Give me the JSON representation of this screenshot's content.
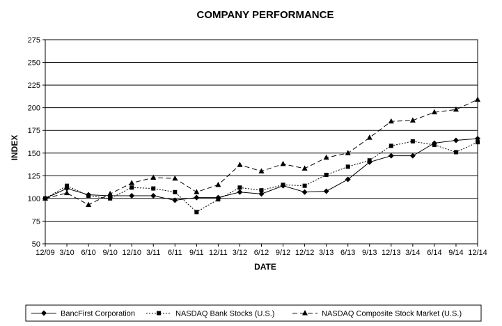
{
  "chart_data": {
    "type": "line",
    "title": "COMPANY PERFORMANCE",
    "xlabel": "DATE",
    "ylabel": "INDEX",
    "ylim": [
      50,
      275
    ],
    "yticks": [
      50,
      75,
      100,
      125,
      150,
      175,
      200,
      225,
      250,
      275
    ],
    "grid": "horizontal",
    "legend_position": "bottom",
    "categories": [
      "12/09",
      "3/10",
      "6/10",
      "9/10",
      "12/10",
      "3/11",
      "6/11",
      "9/11",
      "12/11",
      "3/12",
      "6/12",
      "9/12",
      "12/12",
      "3/13",
      "6/13",
      "9/13",
      "12/13",
      "3/14",
      "6/14",
      "9/14",
      "12/14"
    ],
    "series": [
      {
        "name": "BancFirst Corporation",
        "marker": "diamond",
        "dash": "solid",
        "values": [
          100,
          111,
          104,
          103,
          103,
          103,
          98,
          101,
          101,
          107,
          105,
          114,
          107,
          108,
          121,
          140,
          147,
          147,
          161,
          164,
          166
        ]
      },
      {
        "name": "NASDAQ Bank Stocks (U.S.)",
        "marker": "square",
        "dash": "dotted",
        "values": [
          100,
          114,
          103,
          100,
          112,
          111,
          107,
          85,
          99,
          112,
          109,
          115,
          114,
          126,
          135,
          142,
          158,
          163,
          159,
          151,
          162
        ]
      },
      {
        "name": "NASDAQ Composite Stock Market (U.S.)",
        "marker": "triangle",
        "dash": "dashed",
        "values": [
          100,
          106,
          93,
          105,
          117,
          123,
          122,
          107,
          115,
          137,
          130,
          138,
          133,
          145,
          150,
          167,
          185,
          186,
          195,
          198,
          209
        ]
      }
    ]
  }
}
